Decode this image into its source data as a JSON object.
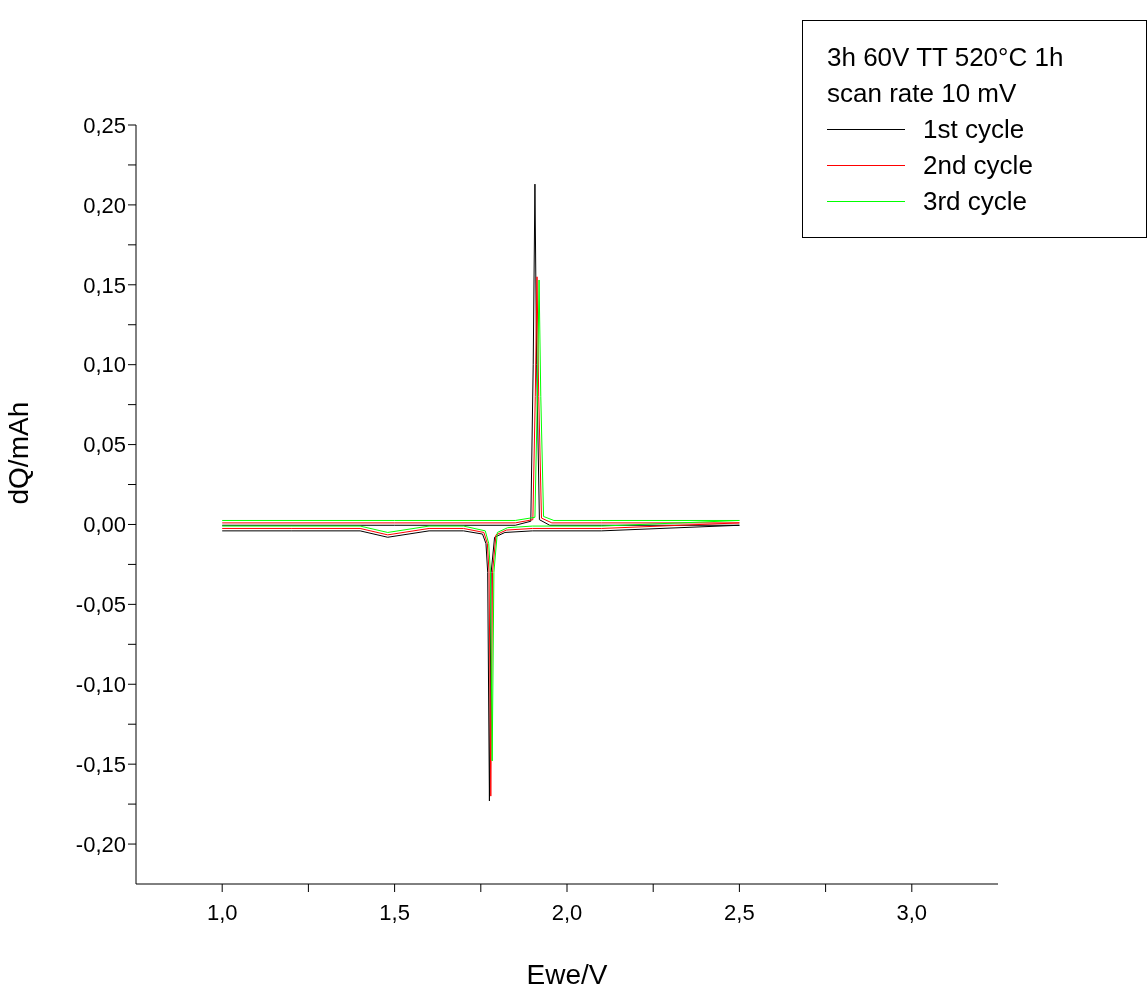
{
  "chart_data": {
    "type": "line",
    "xlabel": "Ewe/V",
    "ylabel": "dQ/mAh",
    "legend_title": "3h 60V TT 520°C 1h\nscan rate 10 mV",
    "legend": "top right",
    "marker": "none",
    "line_style": "solid",
    "grid": false,
    "xlim": [
      0.75,
      3.25
    ],
    "ylim": [
      -0.225,
      0.25
    ],
    "xticks": [
      {
        "value": 1.0,
        "label": "1,0"
      },
      {
        "value": 1.25,
        "label": null
      },
      {
        "value": 1.5,
        "label": "1,5"
      },
      {
        "value": 1.75,
        "label": null
      },
      {
        "value": 2.0,
        "label": "2,0"
      },
      {
        "value": 2.25,
        "label": null
      },
      {
        "value": 2.5,
        "label": "2,5"
      },
      {
        "value": 2.75,
        "label": null
      },
      {
        "value": 3.0,
        "label": "3,0"
      }
    ],
    "yticks": [
      {
        "value": -0.2,
        "label": "-0,20"
      },
      {
        "value": -0.175,
        "label": null
      },
      {
        "value": -0.15,
        "label": "-0,15"
      },
      {
        "value": -0.125,
        "label": null
      },
      {
        "value": -0.1,
        "label": "-0,10"
      },
      {
        "value": -0.075,
        "label": null
      },
      {
        "value": -0.05,
        "label": "-0,05"
      },
      {
        "value": -0.025,
        "label": null
      },
      {
        "value": 0,
        "label": "0,00"
      },
      {
        "value": 0.025,
        "label": null
      },
      {
        "value": 0.05,
        "label": "0,05"
      },
      {
        "value": 0.075,
        "label": null
      },
      {
        "value": 0.1,
        "label": "0,10"
      },
      {
        "value": 0.125,
        "label": null
      },
      {
        "value": 0.15,
        "label": "0,15"
      },
      {
        "value": 0.175,
        "label": null
      },
      {
        "value": 0.2,
        "label": "0,20"
      },
      {
        "value": 0.225,
        "label": null
      },
      {
        "value": 0.25,
        "label": "0,25"
      }
    ],
    "series": [
      {
        "name": "1st cycle",
        "color": "#000000",
        "x": [
          1.0,
          1.5,
          1.85,
          1.895,
          1.902,
          1.907,
          1.912,
          1.92,
          1.95,
          2.1,
          2.5,
          2.1,
          1.9,
          1.82,
          1.79,
          1.78,
          1.775,
          1.77,
          1.765,
          1.755,
          1.7,
          1.6,
          1.48,
          1.4,
          1.2,
          1.0
        ],
        "values": [
          -0.0005,
          -0.0005,
          -0.0005,
          0.002,
          0.1,
          0.213,
          0.1,
          0.003,
          -0.0005,
          -0.0005,
          -0.0005,
          -0.004,
          -0.004,
          -0.005,
          -0.008,
          -0.03,
          -0.173,
          -0.03,
          -0.012,
          -0.006,
          -0.004,
          -0.004,
          -0.008,
          -0.004,
          -0.004,
          -0.004
        ]
      },
      {
        "name": "2nd cycle",
        "color": "#ff0000",
        "x": [
          1.0,
          1.5,
          1.85,
          1.901,
          1.908,
          1.913,
          1.918,
          1.926,
          1.956,
          2.1,
          2.5,
          2.1,
          1.9,
          1.824,
          1.794,
          1.784,
          1.779,
          1.774,
          1.769,
          1.759,
          1.7,
          1.6,
          1.48,
          1.4,
          1.2,
          1.0
        ],
        "values": [
          0.001,
          0.001,
          0.001,
          0.003,
          0.08,
          0.155,
          0.08,
          0.004,
          0.001,
          0.001,
          0.001,
          -0.0025,
          -0.0025,
          -0.0035,
          -0.0065,
          -0.03,
          -0.17,
          -0.03,
          -0.012,
          -0.005,
          -0.0025,
          -0.0025,
          -0.0065,
          -0.0025,
          -0.0025,
          -0.0025
        ]
      },
      {
        "name": "3rd cycle",
        "color": "#00ff00",
        "x": [
          1.0,
          1.5,
          1.85,
          1.907,
          1.914,
          1.919,
          1.924,
          1.932,
          1.962,
          2.1,
          2.5,
          2.1,
          1.9,
          1.828,
          1.798,
          1.788,
          1.783,
          1.778,
          1.773,
          1.763,
          1.7,
          1.6,
          1.48,
          1.4,
          1.2,
          1.0
        ],
        "values": [
          0.0025,
          0.0025,
          0.0025,
          0.0045,
          0.08,
          0.153,
          0.08,
          0.005,
          0.0025,
          0.0025,
          0.0025,
          -0.001,
          -0.001,
          -0.002,
          -0.005,
          -0.03,
          -0.148,
          -0.03,
          -0.012,
          -0.004,
          -0.001,
          -0.001,
          -0.005,
          -0.001,
          -0.001,
          -0.001
        ]
      }
    ]
  }
}
